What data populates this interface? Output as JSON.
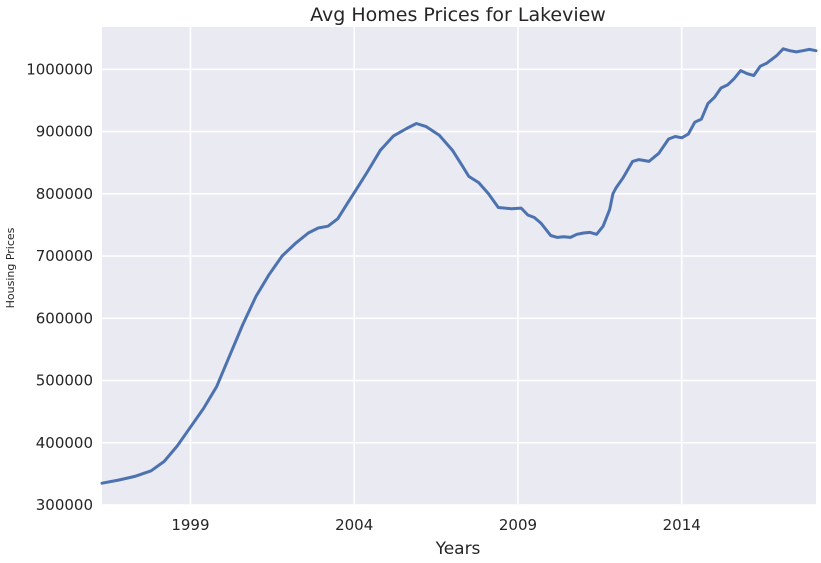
{
  "chart_data": {
    "type": "line",
    "title": "Avg Homes Prices for Lakeview",
    "xlabel": "Years",
    "ylabel": "Housing Prices",
    "xlim": [
      1996.3,
      2018.1
    ],
    "ylim": [
      300000,
      1068000
    ],
    "x_ticks": [
      1999,
      2004,
      2009,
      2014
    ],
    "y_ticks": [
      300000,
      400000,
      500000,
      600000,
      700000,
      800000,
      900000,
      1000000
    ],
    "grid": true,
    "colors": {
      "background": "#eaeaf2",
      "grid": "#ffffff",
      "line": "#4c72b0",
      "text": "#262626"
    },
    "series": [
      {
        "x": [
          1996.3,
          1996.8,
          1997.3,
          1997.8,
          1998.2,
          1998.6,
          1999.0,
          1999.4,
          1999.8,
          2000.2,
          2000.6,
          2001.0,
          2001.4,
          2001.8,
          2002.2,
          2002.6,
          2002.9,
          2003.2,
          2003.5,
          2003.8,
          2004.1,
          2004.4,
          2004.8,
          2005.2,
          2005.6,
          2005.9,
          2006.2,
          2006.6,
          2007.0,
          2007.3,
          2007.5,
          2007.8,
          2008.1,
          2008.4,
          2008.8,
          2009.1,
          2009.3,
          2009.5,
          2009.7,
          2010.0,
          2010.2,
          2010.4,
          2010.6,
          2010.8,
          2011.0,
          2011.2,
          2011.4,
          2011.6,
          2011.8,
          2011.9,
          2012.0,
          2012.2,
          2012.5,
          2012.7,
          2013.0,
          2013.3,
          2013.6,
          2013.8,
          2014.0,
          2014.2,
          2014.4,
          2014.6,
          2014.8,
          2015.0,
          2015.2,
          2015.4,
          2015.6,
          2015.8,
          2016.0,
          2016.2,
          2016.4,
          2016.6,
          2016.9,
          2017.1,
          2017.3,
          2017.5,
          2017.7,
          2017.9,
          2018.1
        ],
        "y": [
          335000,
          340000,
          346000,
          355000,
          370000,
          395000,
          425000,
          455000,
          490000,
          540000,
          590000,
          635000,
          670000,
          700000,
          720000,
          737000,
          745000,
          748000,
          760000,
          785000,
          810000,
          835000,
          870000,
          893000,
          905000,
          913000,
          908000,
          894000,
          870000,
          845000,
          828000,
          818000,
          800000,
          778000,
          776000,
          777000,
          766000,
          762000,
          753000,
          733000,
          730000,
          731000,
          730000,
          735000,
          737000,
          738000,
          735000,
          748000,
          775000,
          800000,
          810000,
          825000,
          852000,
          855000,
          852000,
          865000,
          888000,
          892000,
          890000,
          896000,
          915000,
          920000,
          945000,
          955000,
          970000,
          975000,
          985000,
          998000,
          993000,
          990000,
          1005000,
          1010000,
          1022000,
          1033000,
          1030000,
          1028000,
          1030000,
          1032000,
          1030000
        ]
      }
    ]
  }
}
